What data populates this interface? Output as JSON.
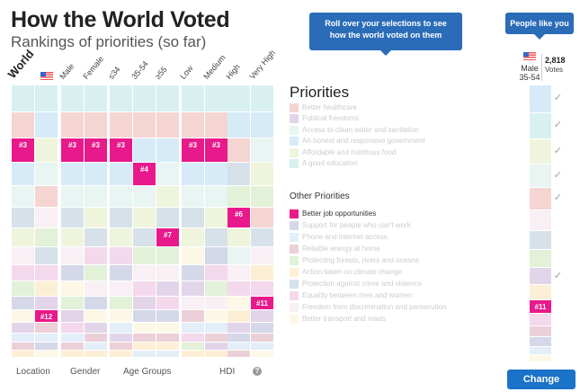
{
  "header": {
    "title": "How the World Voted",
    "subtitle": "Rankings of priorities (so far)"
  },
  "tooltips": {
    "rollover": "Roll over your selections to see how the world voted on them",
    "people_like_you": "People like you"
  },
  "colors": {
    "accent": "#e8198b",
    "button": "#1a73c9",
    "tooltip": "#2a6cb8"
  },
  "priorities_title": "Priorities",
  "other_priorities_title": "Other Priorities",
  "priorities": [
    {
      "label": "Better healthcare",
      "color": "#f5d5d2"
    },
    {
      "label": "Political freedoms",
      "color": "#e2d5ea"
    },
    {
      "label": "Access to clean water and sanitation",
      "color": "#e8f5f3"
    },
    {
      "label": "An honest and responsive government",
      "color": "#d6ebf7"
    },
    {
      "label": "Affordable and nutritious food",
      "color": "#eff5dc"
    },
    {
      "label": "A good education",
      "color": "#d8f0f0"
    },
    {
      "label": "Better job opportunities",
      "color": "#e8198b"
    },
    {
      "label": "Support for people who can't work",
      "color": "#d5d8e8"
    },
    {
      "label": "Phone and internet access",
      "color": "#e3eef8"
    },
    {
      "label": "Reliable energy at home",
      "color": "#ecd0d8"
    },
    {
      "label": "Protecting forests, rivers and oceans",
      "color": "#e2f1d8"
    },
    {
      "label": "Action taken on climate change",
      "color": "#fdefd6"
    },
    {
      "label": "Protection against crime and violence",
      "color": "#d7e1ea"
    },
    {
      "label": "Equality between men and women",
      "color": "#f4d8ec"
    },
    {
      "label": "Freedom from discrimination and persecution",
      "color": "#f8f0f4"
    },
    {
      "label": "Better transport and roads",
      "color": "#fdf8e6"
    }
  ],
  "highlighted_priority": 6,
  "columns": [
    {
      "label": "World",
      "bold": true,
      "order": [
        5,
        0,
        6,
        3,
        2,
        12,
        4,
        14,
        13,
        10,
        7,
        15,
        1,
        8,
        9,
        11
      ],
      "rank_label": "#3"
    },
    {
      "label": "",
      "flag": "us-flag",
      "order": [
        5,
        3,
        4,
        2,
        0,
        14,
        10,
        12,
        13,
        11,
        1,
        6,
        9,
        8,
        7,
        15
      ],
      "rank_label": "#12"
    },
    {
      "label": "Male",
      "order": [
        5,
        0,
        6,
        3,
        2,
        12,
        4,
        14,
        7,
        15,
        10,
        1,
        13,
        8,
        9,
        11
      ],
      "rank_label": "#3"
    },
    {
      "label": "Female",
      "order": [
        5,
        0,
        6,
        3,
        2,
        4,
        12,
        13,
        10,
        14,
        7,
        15,
        1,
        9,
        8,
        11
      ],
      "rank_label": "#3"
    },
    {
      "label": "≤34",
      "order": [
        5,
        0,
        6,
        3,
        2,
        12,
        4,
        13,
        7,
        14,
        10,
        15,
        8,
        1,
        9,
        11
      ],
      "rank_label": "#3"
    },
    {
      "label": "35-54",
      "order": [
        5,
        0,
        3,
        6,
        2,
        4,
        12,
        10,
        14,
        13,
        1,
        7,
        15,
        9,
        11,
        8
      ],
      "rank_label": "#4"
    },
    {
      "label": "≥55",
      "order": [
        5,
        0,
        3,
        2,
        4,
        12,
        6,
        10,
        14,
        1,
        13,
        7,
        15,
        9,
        11,
        8
      ],
      "rank_label": "#7"
    },
    {
      "label": "Low",
      "order": [
        5,
        0,
        6,
        3,
        2,
        12,
        4,
        15,
        7,
        1,
        14,
        9,
        8,
        13,
        10,
        11
      ],
      "rank_label": "#3"
    },
    {
      "label": "Medium",
      "order": [
        5,
        0,
        6,
        3,
        2,
        4,
        12,
        7,
        13,
        10,
        14,
        15,
        8,
        9,
        1,
        11
      ],
      "rank_label": "#3"
    },
    {
      "label": "High",
      "order": [
        5,
        3,
        0,
        12,
        10,
        6,
        4,
        2,
        14,
        13,
        15,
        11,
        1,
        7,
        8,
        9
      ],
      "rank_label": "#6"
    },
    {
      "label": "Very High",
      "order": [
        5,
        3,
        2,
        4,
        10,
        0,
        12,
        14,
        11,
        13,
        6,
        1,
        7,
        9,
        8,
        15
      ],
      "rank_label": "#11"
    }
  ],
  "groups": [
    "Location",
    "Gender",
    "Age Groups",
    "HDI"
  ],
  "help_icon": "question-circle-icon",
  "people_like_you": {
    "flag": "us-flag",
    "demographic_line1": "Male",
    "demographic_line2": "35-54",
    "votes": "2,818",
    "votes_label": "Votes",
    "order": [
      3,
      5,
      4,
      2,
      0,
      14,
      12,
      10,
      1,
      11,
      6,
      13,
      9,
      7,
      8,
      15
    ],
    "rank_label": "#11",
    "selected": [
      3,
      5,
      4,
      2,
      0,
      1
    ]
  },
  "change_button": "Change"
}
